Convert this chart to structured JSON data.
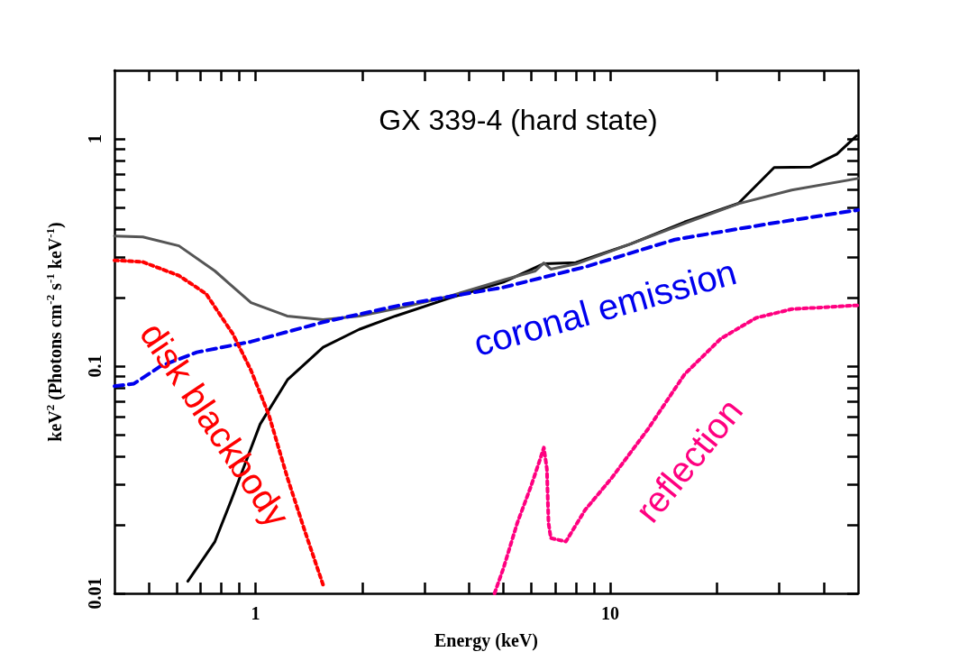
{
  "chart_data": {
    "type": "line",
    "title": "GX 339-4 (hard state)",
    "xlabel": "Energy (keV)",
    "ylabel": "keV$^{2}$ (Photons cm$^{-2}$ s$^{-1}$ keV$^{-1}$)",
    "log": "xy",
    "xlim": [
      0.4,
      50
    ],
    "ylim": [
      0.01,
      2
    ],
    "xticks": [
      {
        "value": 0.5,
        "label": null
      },
      {
        "value": 0.6,
        "label": null
      },
      {
        "value": 0.7,
        "label": null
      },
      {
        "value": 0.8,
        "label": null
      },
      {
        "value": 0.9,
        "label": null
      },
      1,
      {
        "value": 2,
        "label": null
      },
      {
        "value": 3,
        "label": null
      },
      {
        "value": 4,
        "label": null
      },
      {
        "value": 5,
        "label": null
      },
      {
        "value": 6,
        "label": null
      },
      {
        "value": 7,
        "label": null
      },
      {
        "value": 8,
        "label": null
      },
      {
        "value": 9,
        "label": null
      },
      10,
      {
        "value": 20,
        "label": null
      },
      {
        "value": 30,
        "label": null
      },
      {
        "value": 40,
        "label": null
      }
    ],
    "yticks": [
      0.01,
      {
        "value": 0.02,
        "label": null
      },
      {
        "value": 0.03,
        "label": null
      },
      {
        "value": 0.04,
        "label": null
      },
      {
        "value": 0.05,
        "label": null
      },
      {
        "value": 0.06,
        "label": null
      },
      {
        "value": 0.07,
        "label": null
      },
      {
        "value": 0.08,
        "label": null
      },
      {
        "value": 0.09,
        "label": null
      },
      0.1,
      {
        "value": 0.2,
        "label": null
      },
      {
        "value": 0.3,
        "label": null
      },
      {
        "value": 0.4,
        "label": null
      },
      {
        "value": 0.5,
        "label": null
      },
      {
        "value": 0.6,
        "label": null
      },
      {
        "value": 0.7,
        "label": null
      },
      {
        "value": 0.8,
        "label": null
      },
      {
        "value": 0.9,
        "label": null
      },
      1
    ],
    "grid": false,
    "legend": false,
    "marker": "none",
    "series": [
      {
        "color": "#000000",
        "line_style": "solid",
        "x": [
          0.644,
          0.768,
          0.854,
          1.03,
          1.23,
          1.55,
          1.96,
          2.48,
          3.52,
          5.0,
          6.5,
          8.0,
          11.4,
          16.2,
          23,
          29,
          36.7,
          43.6,
          49.5
        ],
        "values": [
          0.0113,
          0.0169,
          0.0257,
          0.0555,
          0.087,
          0.121,
          0.145,
          0.166,
          0.199,
          0.234,
          0.282,
          0.285,
          0.344,
          0.43,
          0.52,
          0.747,
          0.75,
          0.856,
          1.03
        ]
      },
      {
        "color": "#555555",
        "line_style": "solid",
        "x": [
          0.4,
          0.481,
          0.608,
          0.768,
          0.971,
          1.227,
          1.55,
          1.96,
          2.63,
          3.52,
          5.0,
          6.15,
          6.5,
          6.8,
          8.0,
          11.4,
          16.2,
          23,
          32.5,
          50
        ],
        "values": [
          0.373,
          0.37,
          0.338,
          0.262,
          0.19,
          0.166,
          0.16,
          0.166,
          0.182,
          0.203,
          0.239,
          0.262,
          0.284,
          0.267,
          0.281,
          0.344,
          0.424,
          0.518,
          0.595,
          0.669
        ]
      },
      {
        "name": "coronal emission",
        "color": "#0000ee",
        "line_style": "dashed",
        "x": [
          0.4,
          0.454,
          0.54,
          0.683,
          0.97,
          1.55,
          2.63,
          5.0,
          8.5,
          15.2,
          27.3,
          50
        ],
        "values": [
          0.0815,
          0.0837,
          0.1,
          0.115,
          0.128,
          0.156,
          0.187,
          0.222,
          0.273,
          0.36,
          0.42,
          0.486
        ]
      },
      {
        "name": "disk blackbody",
        "color": "#ff0000",
        "line_style": "dotted",
        "x": [
          0.4,
          0.481,
          0.608,
          0.725,
          0.864,
          0.97,
          1.09,
          1.23,
          1.38,
          1.55
        ],
        "values": [
          0.292,
          0.287,
          0.25,
          0.208,
          0.138,
          0.096,
          0.061,
          0.0322,
          0.0186,
          0.0109
        ]
      },
      {
        "name": "reflection",
        "color": "#ff0080",
        "line_style": "dotted",
        "x": [
          4.72,
          5.0,
          5.47,
          5.97,
          6.33,
          6.5,
          6.63,
          6.7,
          6.8,
          7.5,
          8.5,
          10.1,
          12.8,
          16.2,
          20.5,
          25.8,
          32.5,
          50
        ],
        "values": [
          0.01,
          0.0129,
          0.0204,
          0.0294,
          0.0385,
          0.0438,
          0.0353,
          0.0204,
          0.0175,
          0.0169,
          0.0233,
          0.0322,
          0.053,
          0.0919,
          0.132,
          0.163,
          0.178,
          0.185
        ]
      }
    ]
  }
}
